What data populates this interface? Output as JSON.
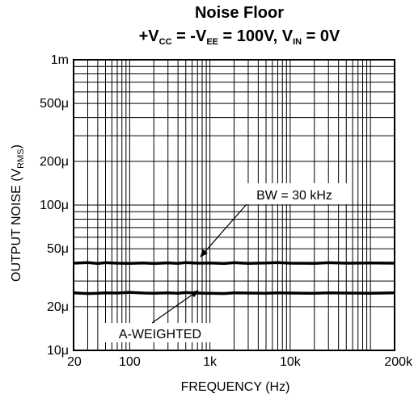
{
  "chart_data": {
    "type": "line",
    "title": "Noise Floor",
    "subtitle": {
      "p1": "+V",
      "p1_sub": "CC",
      "p2": " = -V",
      "p2_sub": "EE",
      "p3": " = 100V, V",
      "p3_sub": "IN",
      "p4": " = 0V"
    },
    "xlabel": "FREQUENCY (Hz)",
    "ylabel": {
      "main": "OUTPUT NOISE (V",
      "sub": "RMS",
      "end": ")"
    },
    "x_scale": "log",
    "y_scale": "log",
    "xlim": [
      20,
      200000
    ],
    "ylim": [
      1e-05,
      0.001
    ],
    "grid": true,
    "x_ticks": [
      {
        "value": 20,
        "label": "20"
      },
      {
        "value": 100,
        "label": "100"
      },
      {
        "value": 1000,
        "label": "1k"
      },
      {
        "value": 10000,
        "label": "10k"
      },
      {
        "value": 200000,
        "label": "200k"
      }
    ],
    "y_ticks": [
      {
        "value": 0.001,
        "label": "1m"
      },
      {
        "value": 0.0005,
        "label": "500μ"
      },
      {
        "value": 0.0002,
        "label": "200μ"
      },
      {
        "value": 0.0001,
        "label": "100μ"
      },
      {
        "value": 5e-05,
        "label": "50μ"
      },
      {
        "value": 2e-05,
        "label": "20μ"
      },
      {
        "value": 1e-05,
        "label": "10μ"
      }
    ],
    "series": [
      {
        "name": "BW = 30 kHz",
        "x": [
          20,
          30,
          40,
          50,
          70,
          100,
          150,
          200,
          300,
          400,
          500,
          700,
          1000,
          1500,
          2000,
          3000,
          5000,
          7000,
          10000,
          20000,
          30000,
          50000,
          100000,
          200000
        ],
        "y": [
          3.98e-05,
          4.02e-05,
          3.96e-05,
          4.01e-05,
          3.98e-05,
          3.97e-05,
          3.99e-05,
          3.96e-05,
          4e-05,
          3.97e-05,
          4.02e-05,
          3.98e-05,
          3.99e-05,
          3.96e-05,
          4.01e-05,
          3.97e-05,
          3.99e-05,
          4.02e-05,
          3.98e-05,
          3.97e-05,
          4.01e-05,
          3.98e-05,
          3.99e-05,
          3.98e-05
        ]
      },
      {
        "name": "A-WEIGHTED",
        "x": [
          20,
          30,
          40,
          50,
          70,
          100,
          150,
          200,
          300,
          400,
          500,
          700,
          1000,
          1500,
          2000,
          3000,
          5000,
          7000,
          10000,
          20000,
          30000,
          50000,
          100000,
          200000
        ],
        "y": [
          2.49e-05,
          2.46e-05,
          2.47e-05,
          2.49e-05,
          2.48e-05,
          2.51e-05,
          2.48e-05,
          2.47e-05,
          2.49e-05,
          2.47e-05,
          2.5e-05,
          2.48e-05,
          2.47e-05,
          2.46e-05,
          2.49e-05,
          2.48e-05,
          2.47e-05,
          2.49e-05,
          2.48e-05,
          2.47e-05,
          2.49e-05,
          2.48e-05,
          2.47e-05,
          2.49e-05
        ]
      }
    ],
    "annotations": [
      {
        "text": "BW = 30 kHz",
        "series": 0
      },
      {
        "text": "A-WEIGHTED",
        "series": 1
      }
    ]
  }
}
